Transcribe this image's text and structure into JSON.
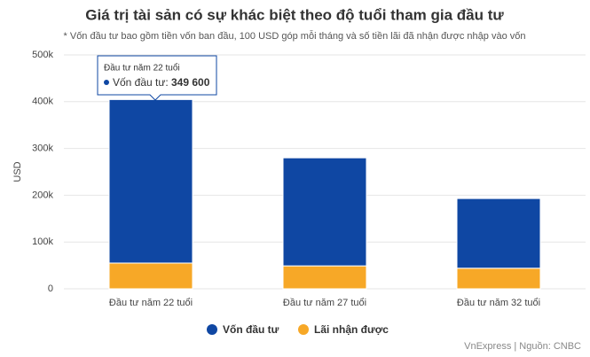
{
  "chart_data": {
    "type": "stacked_bar",
    "title": "Giá trị tài sản có sự khác biệt theo độ tuổi tham gia đầu tư",
    "subtitle": "* Vốn đầu tư bao gồm tiền vốn ban đầu, 100 USD góp mỗi tháng và số tiền lãi đã nhận được nhập vào vốn",
    "y_label": "USD",
    "categories": [
      "Đầu tư năm 22 tuổi",
      "Đầu tư năm 27 tuổi",
      "Đầu tư năm 32 tuổi"
    ],
    "series": [
      {
        "name": "Vốn đầu tư",
        "color": "#0f47a3",
        "values": [
          349600,
          231000,
          149000
        ]
      },
      {
        "name": "Lãi nhận được",
        "color": "#f7a827",
        "values": [
          55000,
          49000,
          44000
        ]
      }
    ],
    "ylim": [
      0,
      500000
    ],
    "yticks": [
      0,
      {
        "value": 100000,
        "label": "100k"
      },
      {
        "value": 200000,
        "label": "200k"
      },
      {
        "value": 300000,
        "label": "300k"
      },
      {
        "value": 400000,
        "label": "400k"
      },
      {
        "value": 500000,
        "label": "500k"
      }
    ],
    "grid": true,
    "tooltip": {
      "category": "Đầu tư năm 22 tuổi",
      "label": "Vốn đầu tư:",
      "value": "349 600"
    },
    "source": "VnExpress | Nguồn: CNBC"
  }
}
